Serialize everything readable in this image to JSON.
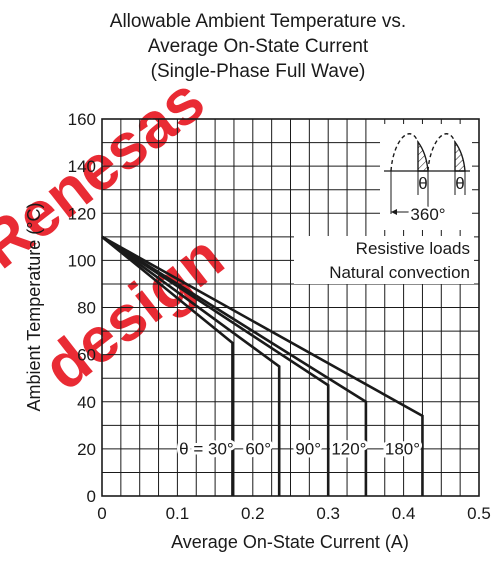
{
  "chart_data": {
    "type": "line",
    "title": [
      "Allowable Ambient Temperature vs.",
      "Average On-State Current",
      "(Single-Phase Full Wave)"
    ],
    "xlabel": "Average On-State Current  (A)",
    "ylabel": "Ambient Temperature  (°C)",
    "xlim": [
      0,
      0.5
    ],
    "ylim": [
      0,
      160
    ],
    "xticks": [
      "0",
      "0.1",
      "0.2",
      "0.3",
      "0.4",
      "0.5"
    ],
    "yticks": [
      "0",
      "20",
      "40",
      "60",
      "80",
      "100",
      "120",
      "140",
      "160"
    ],
    "grid": true,
    "legend": "in-plot, bottom",
    "series": [
      {
        "name": "θ = 30°",
        "x": [
          0,
          0.173,
          0.173
        ],
        "y": [
          110,
          65,
          0
        ]
      },
      {
        "name": "60°",
        "x": [
          0,
          0.235,
          0.235
        ],
        "y": [
          110,
          55,
          0
        ]
      },
      {
        "name": "90°",
        "x": [
          0,
          0.3,
          0.3
        ],
        "y": [
          110,
          47,
          0
        ]
      },
      {
        "name": "120°",
        "x": [
          0,
          0.35,
          0.35
        ],
        "y": [
          110,
          40,
          0
        ]
      },
      {
        "name": "180°",
        "x": [
          0,
          0.425,
          0.425
        ],
        "y": [
          110,
          34,
          0
        ]
      }
    ],
    "annotations": [
      "Resistive loads",
      "Natural convection"
    ],
    "inset": {
      "theta_left": "θ",
      "theta_right": "θ",
      "period": "360°"
    }
  },
  "watermark": [
    "Renesas",
    "design"
  ],
  "colors": {
    "line": "#1a1a1a",
    "watermark": "#e8202a"
  }
}
